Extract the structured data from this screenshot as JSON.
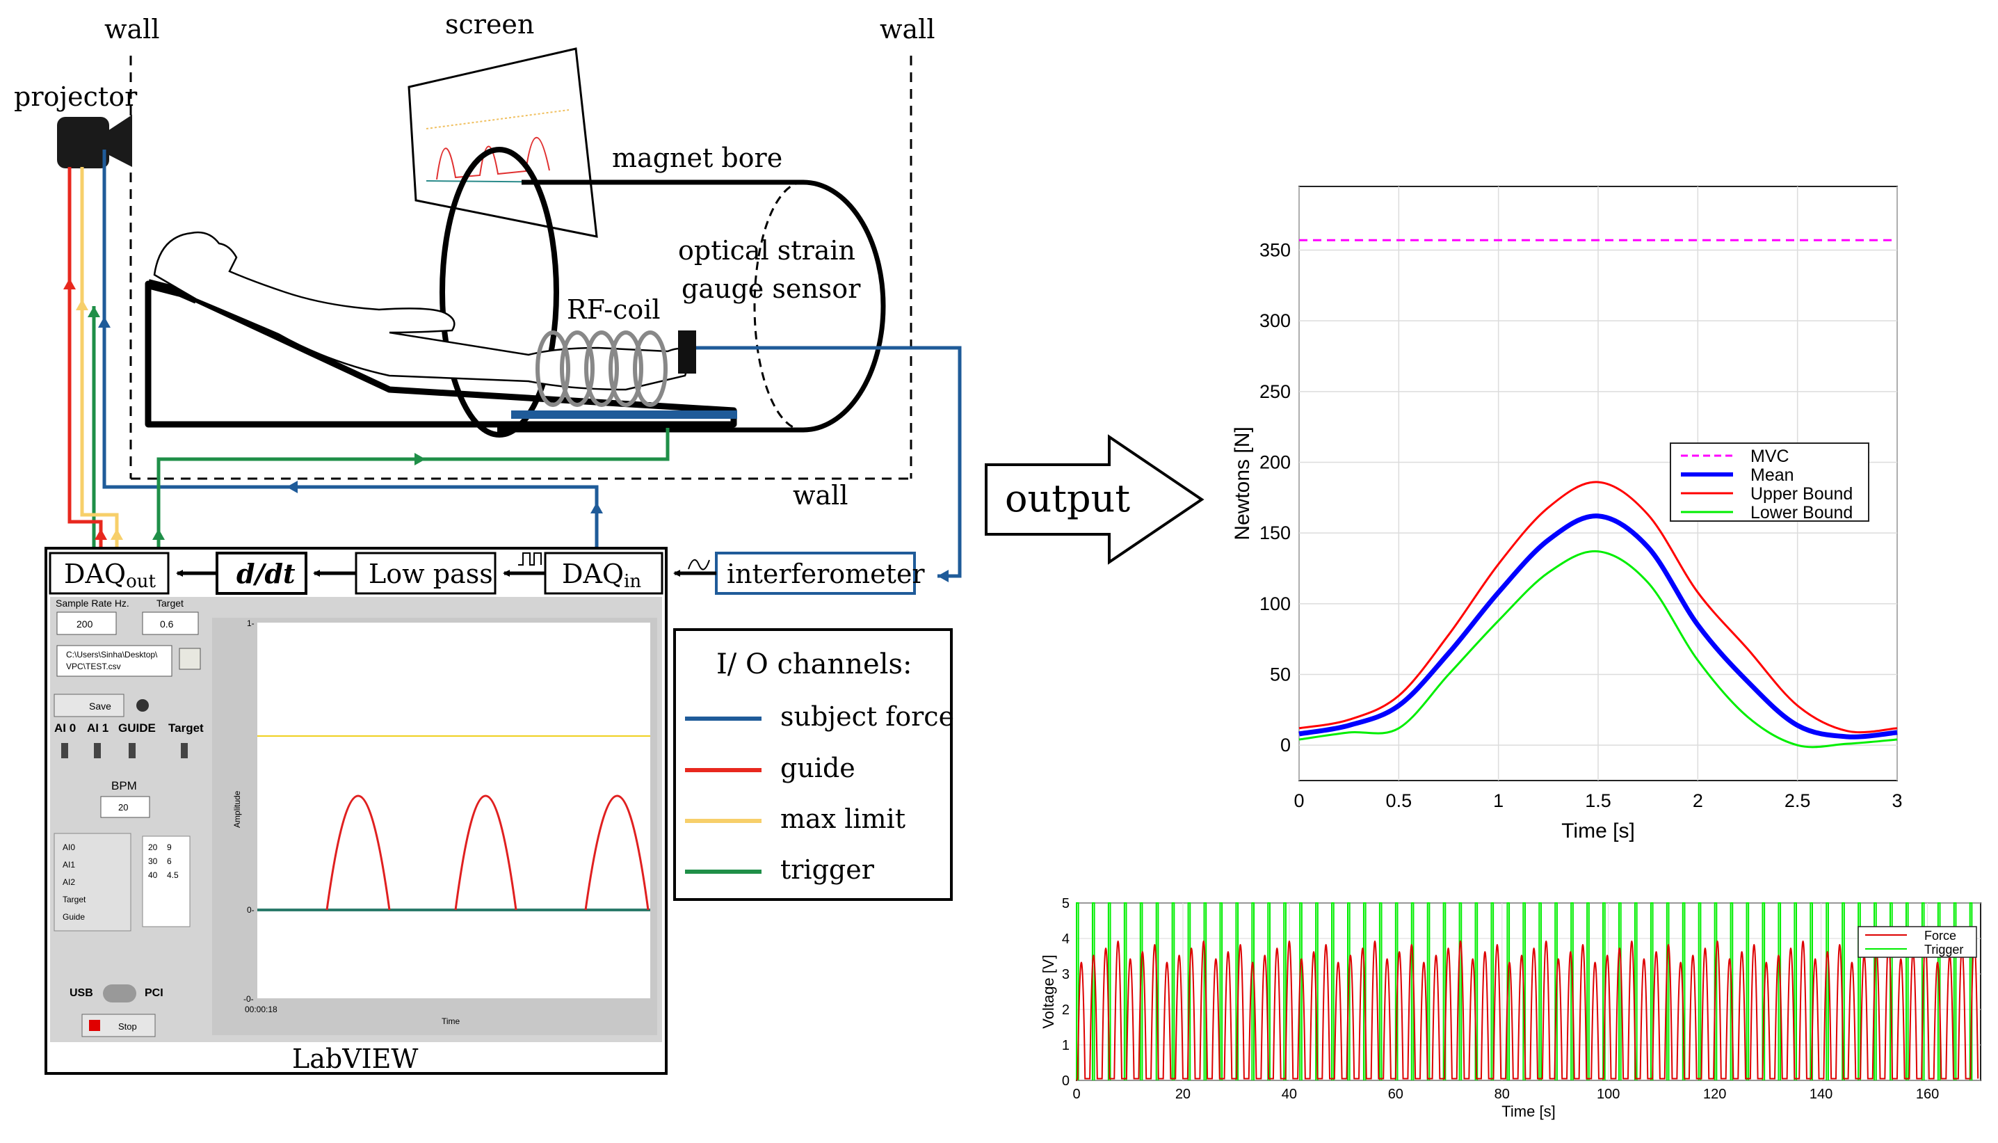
{
  "setup": {
    "wall_left": "wall",
    "wall_right": "wall",
    "wall_bottom": "wall",
    "screen": "screen",
    "projector": "projector",
    "magnet_bore": "magnet bore",
    "sensor_line1": "optical strain",
    "sensor_line2": "gauge sensor",
    "rf_coil": "RF-coil",
    "output": "output"
  },
  "pipeline": {
    "daq_out_main": "DAQ",
    "daq_out_sub": "out",
    "ddt": "d/dt",
    "low_pass": "Low pass",
    "daq_in_main": "DAQ",
    "daq_in_sub": "in",
    "interferometer": "interferometer",
    "labview": "LabVIEW"
  },
  "legend": {
    "title": "I/ O channels:",
    "items": [
      {
        "label": "subject force",
        "color": "#1f5b99"
      },
      {
        "label": "guide",
        "color": "#e8281e"
      },
      {
        "label": "max limit",
        "color": "#f7cf6a"
      },
      {
        "label": "trigger",
        "color": "#1f8f48"
      }
    ]
  },
  "labview_panel": {
    "sample_rate_label": "Sample Rate Hz.",
    "sample_rate_value": "200",
    "target_label": "Target",
    "target_value": "0.6",
    "file_path_1": "C:\\Users\\Sinha\\Desktop\\",
    "file_path_2": "VPC\\TEST.csv",
    "save_label": "Save",
    "switch_labels": [
      "AI 0",
      "AI 1",
      "GUIDE",
      "Target"
    ],
    "bpm_label": "BPM",
    "bpm_value": "20",
    "channel_legend": [
      "AI0",
      "AI1",
      "AI2",
      "Target",
      "Guide"
    ],
    "table": [
      [
        "20",
        "9"
      ],
      [
        "30",
        "6"
      ],
      [
        "40",
        "4.5"
      ]
    ],
    "usb_label": "USB",
    "pci_label": "PCI",
    "stop_label": "Stop",
    "chart_y_top": "1-",
    "chart_y_zero": "0-",
    "chart_y_bottom": "-0-",
    "chart_ylabel": "Amplitude",
    "chart_xlabel": "Time",
    "chart_time": "00:00:18"
  },
  "chart_data": [
    {
      "type": "line",
      "title": "",
      "xlabel": "Time [s]",
      "ylabel": "Newtons [N]",
      "xlim": [
        0,
        3
      ],
      "ylim": [
        -25,
        395
      ],
      "xticks": [
        "0",
        "0.5",
        "1",
        "1.5",
        "2",
        "2.5",
        "3"
      ],
      "yticks": [
        "0",
        "50",
        "100",
        "150",
        "200",
        "250",
        "300",
        "350"
      ],
      "legend_position": "right",
      "series": [
        {
          "name": "MVC",
          "color": "#ff00ff",
          "style": "dashed",
          "x": [
            0,
            3
          ],
          "y": [
            357,
            357
          ]
        },
        {
          "name": "Mean",
          "color": "#0000ff",
          "style": "thick",
          "x": [
            0,
            0.25,
            0.5,
            0.75,
            1.0,
            1.25,
            1.5,
            1.75,
            2.0,
            2.25,
            2.5,
            2.75,
            3.0
          ],
          "y": [
            8,
            14,
            28,
            65,
            108,
            145,
            162,
            140,
            85,
            45,
            14,
            6,
            9
          ]
        },
        {
          "name": "Upper Bound",
          "color": "#ff0000",
          "style": "solid",
          "x": [
            0,
            0.25,
            0.5,
            0.75,
            1.0,
            1.25,
            1.5,
            1.75,
            2.0,
            2.25,
            2.5,
            2.75,
            3.0
          ],
          "y": [
            12,
            18,
            35,
            78,
            128,
            168,
            186,
            163,
            108,
            68,
            28,
            10,
            12
          ]
        },
        {
          "name": "Lower Bound",
          "color": "#00ee00",
          "style": "solid",
          "x": [
            0,
            0.25,
            0.5,
            0.75,
            1.0,
            1.25,
            1.5,
            1.75,
            2.0,
            2.25,
            2.5,
            2.75,
            3.0
          ],
          "y": [
            4,
            9,
            12,
            50,
            88,
            122,
            137,
            115,
            60,
            20,
            0,
            1,
            4
          ]
        }
      ]
    },
    {
      "type": "line",
      "title": "",
      "xlabel": "Time [s]",
      "ylabel": "Voltage [V]",
      "xlim": [
        0,
        170
      ],
      "ylim": [
        0,
        5
      ],
      "xticks": [
        "0",
        "20",
        "40",
        "60",
        "80",
        "100",
        "120",
        "140",
        "160"
      ],
      "yticks": [
        "0",
        "1",
        "2",
        "3",
        "4",
        "5"
      ],
      "legend_position": "top-right",
      "series": [
        {
          "name": "Force",
          "color": "#dd0000",
          "period_s": 2.3,
          "peak_v": [
            3.3,
            3.9
          ]
        },
        {
          "name": "Trigger",
          "color": "#00ee00",
          "period_s": 3.0,
          "high_v": 5,
          "low_v": 0
        }
      ]
    }
  ]
}
